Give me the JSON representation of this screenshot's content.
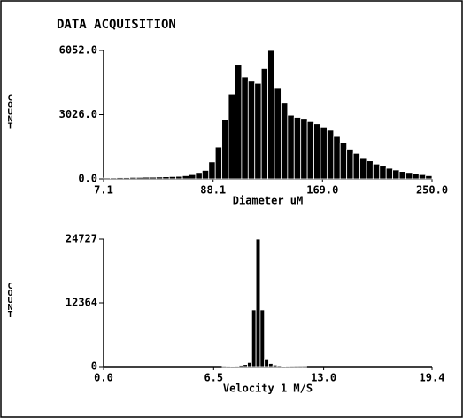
{
  "title": "DATA ACQUISITION",
  "chart_data": [
    {
      "type": "histogram",
      "ylabel": "COUNT",
      "xlabel": "Diameter uM",
      "color": "#000000",
      "bins": [
        7.1,
        11.96,
        16.82,
        21.68,
        26.54,
        31.4,
        36.26,
        41.12,
        45.98,
        50.84,
        55.7,
        60.56,
        65.42,
        70.28,
        75.14,
        80.0,
        84.86,
        89.72,
        94.58,
        99.44,
        104.3,
        109.16,
        114.02,
        118.88,
        123.74,
        128.6,
        133.46,
        138.32,
        143.18,
        148.04,
        152.9,
        157.76,
        162.62,
        167.48,
        172.34,
        177.2,
        182.06,
        186.92,
        191.78,
        196.64,
        201.5,
        206.36,
        211.22,
        216.08,
        220.94,
        225.8,
        230.66,
        235.52,
        240.38,
        245.24,
        250.1
      ],
      "counts": [
        50,
        50,
        60,
        60,
        70,
        70,
        80,
        80,
        90,
        100,
        110,
        120,
        150,
        200,
        300,
        400,
        800,
        1500,
        2800,
        4000,
        5400,
        4800,
        4600,
        4500,
        5200,
        6052,
        4300,
        3600,
        3000,
        2900,
        2850,
        2700,
        2600,
        2450,
        2300,
        2000,
        1700,
        1400,
        1200,
        1000,
        850,
        700,
        600,
        500,
        420,
        350,
        300,
        250,
        200,
        150
      ],
      "xlim": [
        7.1,
        250
      ],
      "xticks": [
        7.1,
        88.1,
        {
          "value": 169,
          "label": "169.0"
        },
        {
          "value": 250,
          "label": "250.0"
        }
      ],
      "ylim": [
        0,
        6052
      ],
      "yticks": [
        {
          "value": 0,
          "label": "0.0"
        },
        {
          "value": 3026,
          "label": "3026.0"
        },
        {
          "value": 6052,
          "label": "6052.0"
        }
      ]
    },
    {
      "type": "histogram",
      "ylabel": "COUNT",
      "xlabel": "Velocity 1 M/S",
      "color": "#000000",
      "bins": [
        7.0,
        7.25,
        7.5,
        7.75,
        8.0,
        8.25,
        8.5,
        8.75,
        9.0,
        9.25,
        9.5,
        9.75,
        10.0,
        10.25,
        10.5,
        10.75,
        11.0,
        11.25,
        11.5,
        11.75,
        12.0
      ],
      "counts": [
        50,
        80,
        100,
        150,
        250,
        400,
        800,
        11000,
        24727,
        11000,
        1500,
        600,
        300,
        200,
        120,
        80,
        60,
        40,
        30,
        20
      ],
      "xlim": [
        0,
        19.4
      ],
      "xticks": [
        {
          "value": 0,
          "label": "0.0"
        },
        6.5,
        {
          "value": 13,
          "label": "13.0"
        },
        19.4
      ],
      "ylim": [
        0,
        24727
      ],
      "yticks": [
        0,
        12364,
        24727
      ]
    }
  ]
}
